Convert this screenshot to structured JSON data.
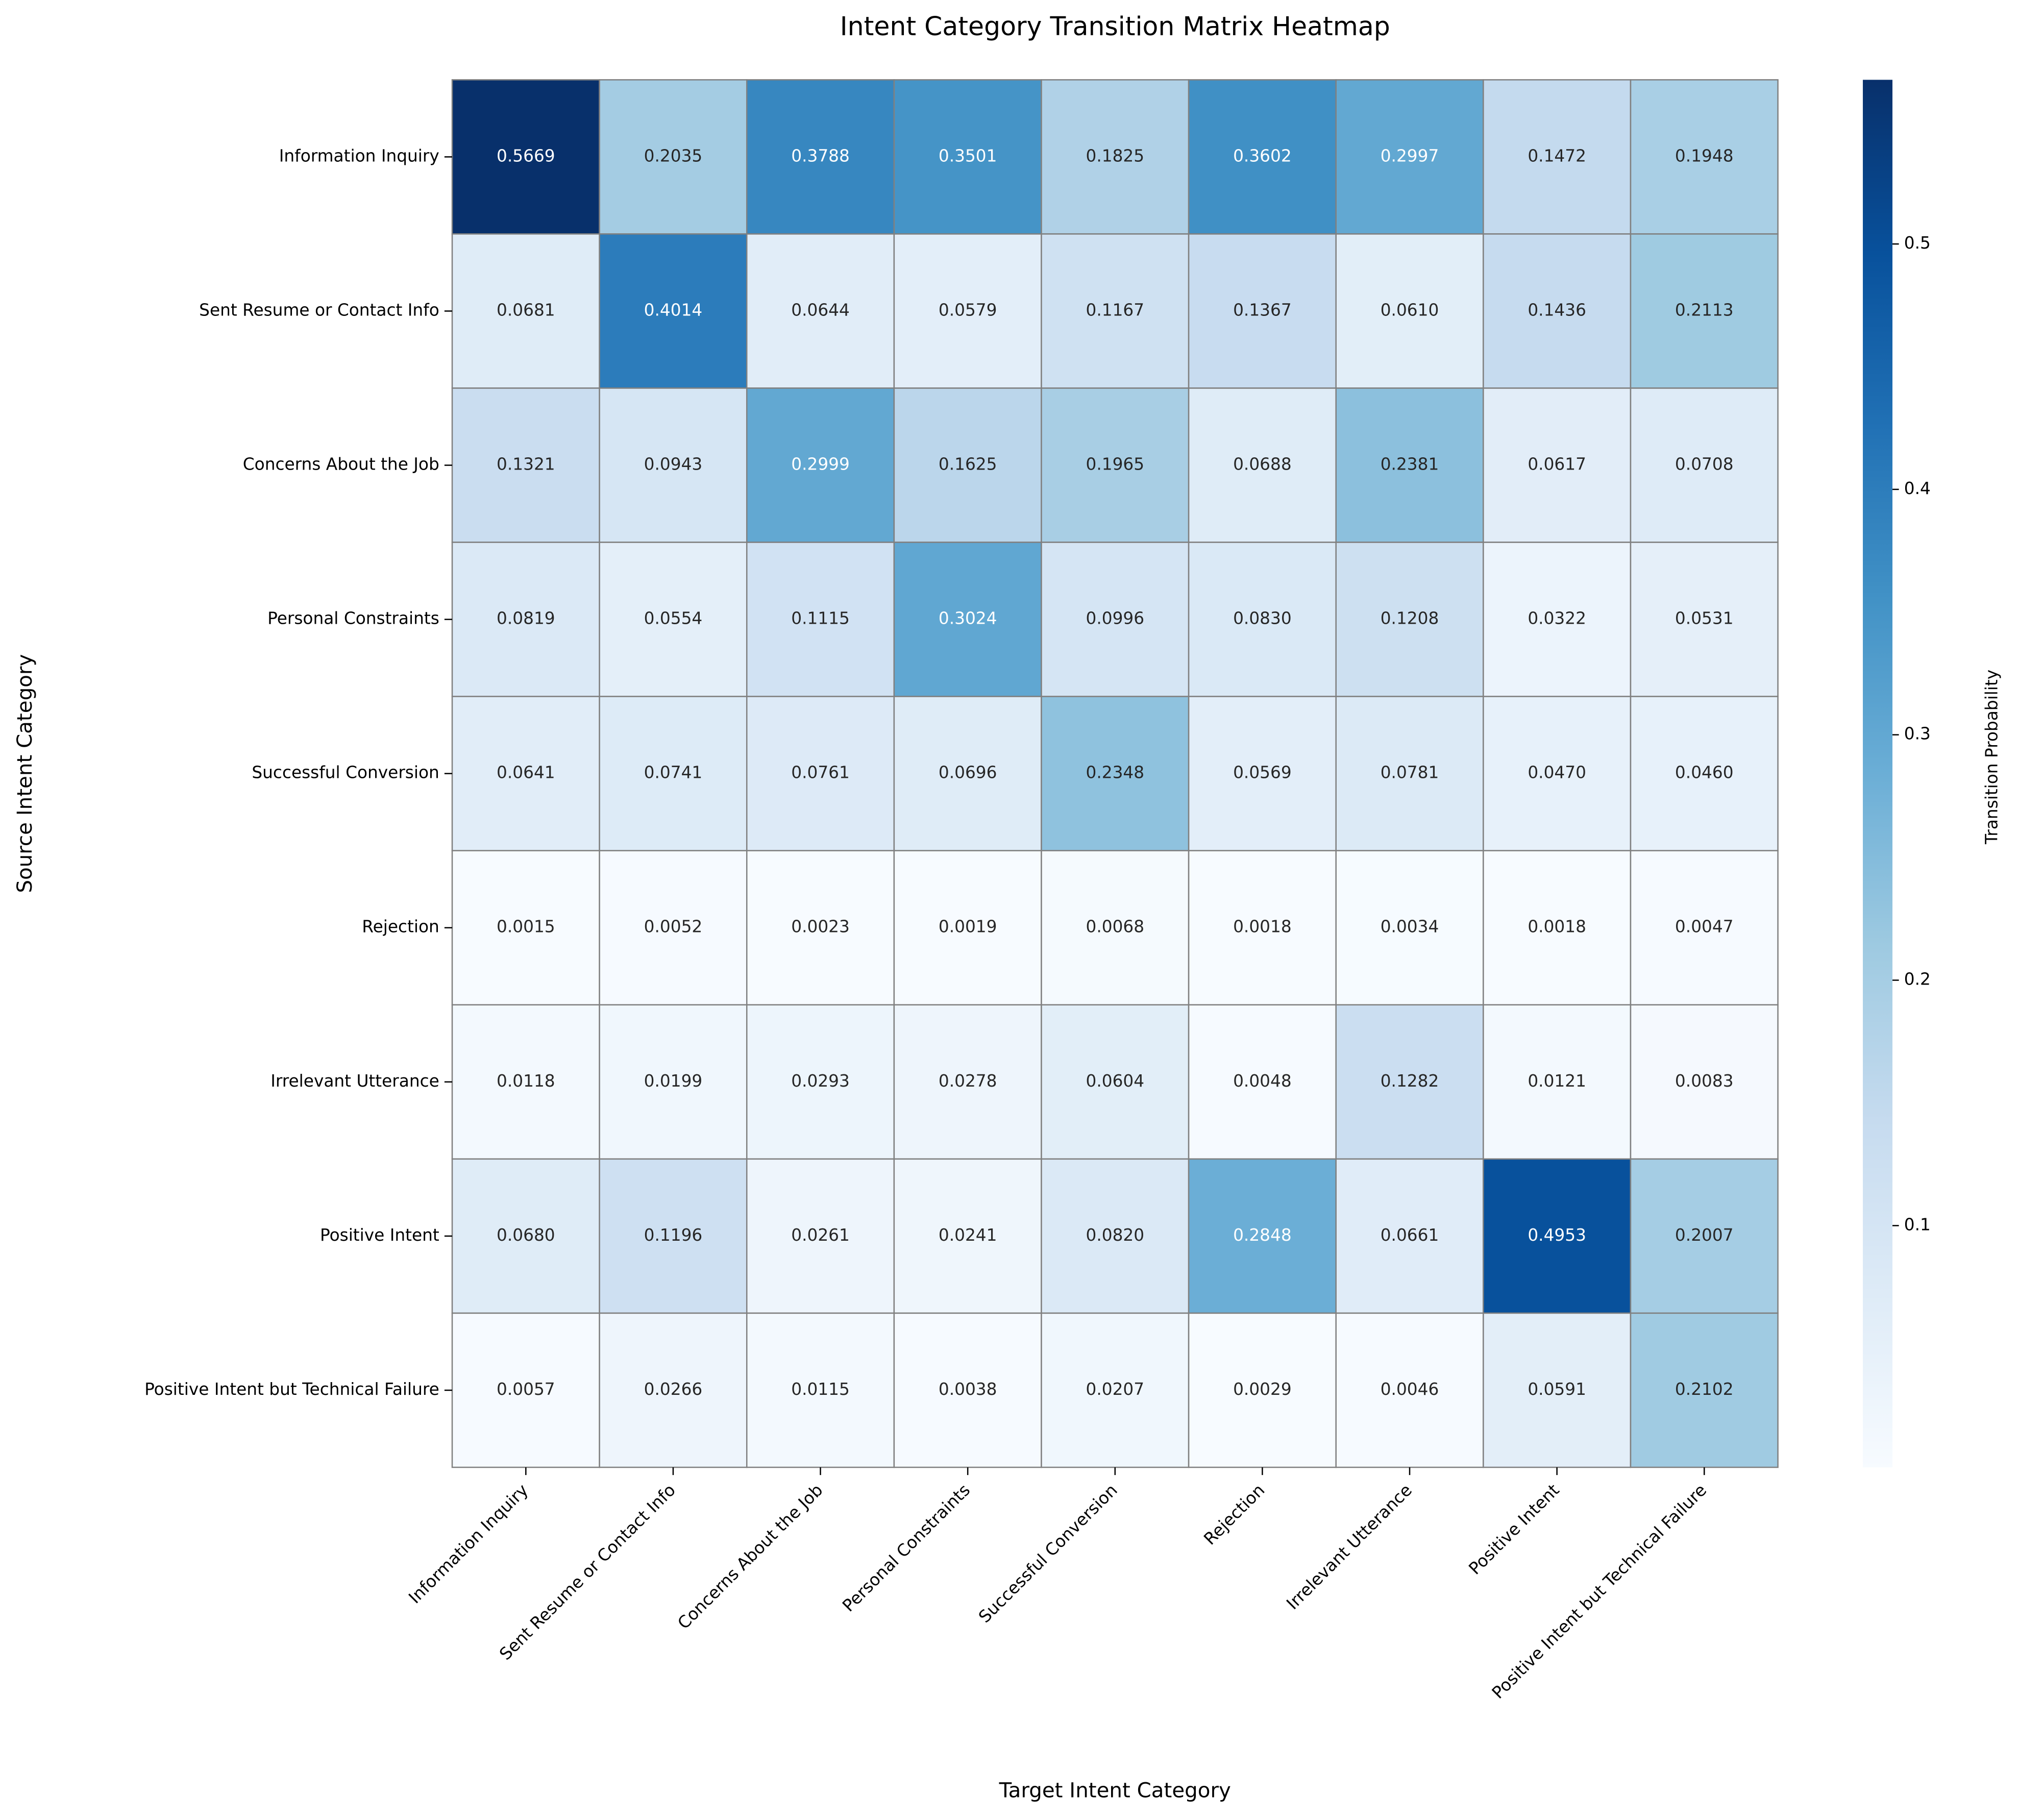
{
  "chart_data": {
    "type": "heatmap",
    "title": "Intent Category Transition Matrix Heatmap",
    "x_label": "Target Intent Category",
    "y_label": "Source Intent Category",
    "colorbar_label": "Transition Probability",
    "x_categories": [
      "Information Inquiry",
      "Sent Resume or Contact Info",
      "Concerns About the Job",
      "Personal Constraints",
      "Successful Conversion",
      "Rejection",
      "Irrelevant Utterance",
      "Positive Intent",
      "Positive Intent but Technical Failure"
    ],
    "y_categories": [
      "Information Inquiry",
      "Sent Resume or Contact Info",
      "Concerns About the Job",
      "Personal Constraints",
      "Successful Conversion",
      "Rejection",
      "Irrelevant Utterance",
      "Positive Intent",
      "Positive Intent but Technical Failure"
    ],
    "values": [
      [
        0.5669,
        0.2035,
        0.3788,
        0.3501,
        0.1825,
        0.3602,
        0.2997,
        0.1472,
        0.1948
      ],
      [
        0.0681,
        0.4014,
        0.0644,
        0.0579,
        0.1167,
        0.1367,
        0.061,
        0.1436,
        0.2113
      ],
      [
        0.1321,
        0.0943,
        0.2999,
        0.1625,
        0.1965,
        0.0688,
        0.2381,
        0.0617,
        0.0708
      ],
      [
        0.0819,
        0.0554,
        0.1115,
        0.3024,
        0.0996,
        0.083,
        0.1208,
        0.0322,
        0.0531
      ],
      [
        0.0641,
        0.0741,
        0.0761,
        0.0696,
        0.2348,
        0.0569,
        0.0781,
        0.047,
        0.046
      ],
      [
        0.0015,
        0.0052,
        0.0023,
        0.0019,
        0.0068,
        0.0018,
        0.0034,
        0.0018,
        0.0047
      ],
      [
        0.0118,
        0.0199,
        0.0293,
        0.0278,
        0.0604,
        0.0048,
        0.1282,
        0.0121,
        0.0083
      ],
      [
        0.068,
        0.1196,
        0.0261,
        0.0241,
        0.082,
        0.2848,
        0.0661,
        0.4953,
        0.2007
      ],
      [
        0.0057,
        0.0266,
        0.0115,
        0.0038,
        0.0207,
        0.0029,
        0.0046,
        0.0591,
        0.2102
      ]
    ],
    "value_labels": [
      [
        "0.5669",
        "0.2035",
        "0.3788",
        "0.3501",
        "0.1825",
        "0.3602",
        "0.2997",
        "0.1472",
        "0.1948"
      ],
      [
        "0.0681",
        "0.4014",
        "0.0644",
        "0.0579",
        "0.1167",
        "0.1367",
        "0.0610",
        "0.1436",
        "0.2113"
      ],
      [
        "0.1321",
        "0.0943",
        "0.2999",
        "0.1625",
        "0.1965",
        "0.0688",
        "0.2381",
        "0.0617",
        "0.0708"
      ],
      [
        "0.0819",
        "0.0554",
        "0.1115",
        "0.3024",
        "0.0996",
        "0.0830",
        "0.1208",
        "0.0322",
        "0.0531"
      ],
      [
        "0.0641",
        "0.0741",
        "0.0761",
        "0.0696",
        "0.2348",
        "0.0569",
        "0.0781",
        "0.0470",
        "0.0460"
      ],
      [
        "0.0015",
        "0.0052",
        "0.0023",
        "0.0019",
        "0.0068",
        "0.0018",
        "0.0034",
        "0.0018",
        "0.0047"
      ],
      [
        "0.0118",
        "0.0199",
        "0.0293",
        "0.0278",
        "0.0604",
        "0.0048",
        "0.1282",
        "0.0121",
        "0.0083"
      ],
      [
        "0.0680",
        "0.1196",
        "0.0261",
        "0.0241",
        "0.0820",
        "0.2848",
        "0.0661",
        "0.4953",
        "0.2007"
      ],
      [
        "0.0057",
        "0.0266",
        "0.0115",
        "0.0038",
        "0.0207",
        "0.0029",
        "0.0046",
        "0.0591",
        "0.2102"
      ]
    ],
    "zlim": [
      0.0015,
      0.5669
    ],
    "zticks": [
      0.1,
      0.2,
      0.3,
      0.4,
      0.5
    ],
    "colormap": [
      "#f7fbff",
      "#deebf7",
      "#c6dbef",
      "#9ecae1",
      "#6baed6",
      "#4292c6",
      "#2171b5",
      "#08519c",
      "#08306b"
    ]
  }
}
